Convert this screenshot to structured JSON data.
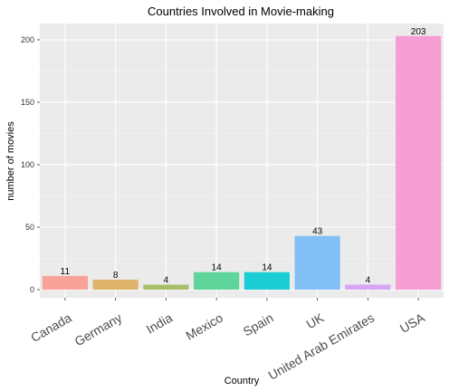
{
  "chart_data": {
    "type": "bar",
    "title": "Countries Involved in Movie-making",
    "xlabel": "Country",
    "ylabel": "number of movies",
    "categories": [
      "Canada",
      "Germany",
      "India",
      "Mexico",
      "Spain",
      "UK",
      "United Arab Emirates",
      "USA"
    ],
    "values": [
      11,
      8,
      4,
      14,
      14,
      43,
      4,
      203
    ],
    "data_labels": [
      "11",
      "8",
      "4",
      "14",
      "14",
      "43",
      "4",
      "203"
    ],
    "colors": [
      "#F8A29A",
      "#DDB46A",
      "#A8BE6B",
      "#5FD49B",
      "#1BCDD4",
      "#82BFF4",
      "#D7A4F6",
      "#F69DD4"
    ],
    "yticks": [
      0,
      50,
      100,
      150,
      200
    ],
    "ytick_labels": [
      "0",
      "50",
      "100",
      "150",
      "200"
    ],
    "ylim": [
      -6.5,
      213
    ],
    "grid": true,
    "legend": "none"
  }
}
